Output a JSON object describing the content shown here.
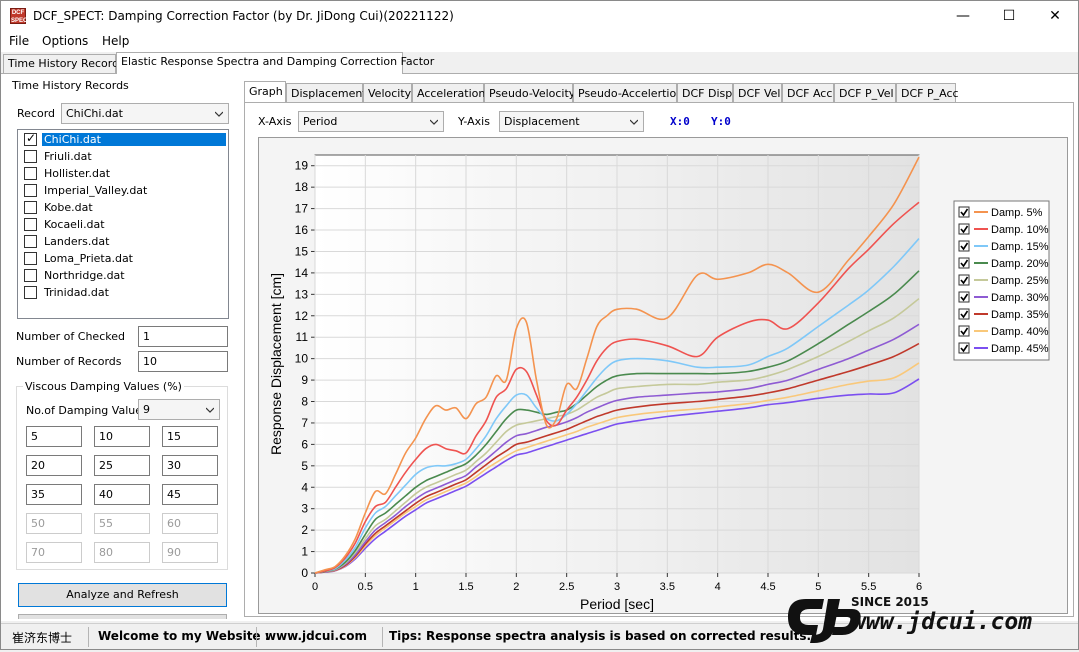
{
  "window": {
    "title": "DCF_SPECT: Damping Correction Factor (by Dr. JiDong Cui)(20221122)",
    "icon_text": "DCF SPECT",
    "minimize": "—",
    "maximize": "☐",
    "close": "✕"
  },
  "menu": [
    "File",
    "Options",
    "Help"
  ],
  "top_tabs": [
    "Time History Records",
    "Elastic Response Spectra and Damping Correction Factor"
  ],
  "left": {
    "group_title": "Time History Records",
    "record_label": "Record",
    "record_value": "ChiChi.dat",
    "records": [
      {
        "name": "ChiChi.dat",
        "checked": true,
        "selected": true
      },
      {
        "name": "Friuli.dat",
        "checked": false,
        "selected": false
      },
      {
        "name": "Hollister.dat",
        "checked": false,
        "selected": false
      },
      {
        "name": "Imperial_Valley.dat",
        "checked": false,
        "selected": false
      },
      {
        "name": "Kobe.dat",
        "checked": false,
        "selected": false
      },
      {
        "name": "Kocaeli.dat",
        "checked": false,
        "selected": false
      },
      {
        "name": "Landers.dat",
        "checked": false,
        "selected": false
      },
      {
        "name": "Loma_Prieta.dat",
        "checked": false,
        "selected": false
      },
      {
        "name": "Northridge.dat",
        "checked": false,
        "selected": false
      },
      {
        "name": "Trinidad.dat",
        "checked": false,
        "selected": false
      }
    ],
    "num_checked_label": "Number of Checked",
    "num_checked_value": "1",
    "num_records_label": "Number of Records",
    "num_records_value": "10",
    "damping_group_title": "Viscous Damping Values (%)",
    "num_damping_label": "No.of Damping Values",
    "num_damping_value": "9",
    "damping_values": [
      "5",
      "10",
      "15",
      "20",
      "25",
      "30",
      "35",
      "40",
      "45",
      "50",
      "55",
      "60",
      "70",
      "80",
      "90"
    ],
    "damping_enabled_count": 9,
    "analyze_button": "Analyze and Refresh"
  },
  "right": {
    "tabs": [
      "Graph",
      "Displacement",
      "Velocity",
      "Acceleration",
      "Pseudo-Velocity",
      "Pseudo-Accelertion",
      "DCF Disp",
      "DCF Vel",
      "DCF Acc",
      "DCF P_Vel",
      "DCF P_Acc"
    ],
    "active_tab": "Graph",
    "xaxis_label": "X-Axis",
    "xaxis_value": "Period",
    "yaxis_label": "Y-Axis",
    "yaxis_value": "Displacement",
    "x_readout": "X:0",
    "y_readout": "Y:0"
  },
  "status": {
    "author": "崔济东博士",
    "welcome": "Welcome to my Website :",
    "website": "www.jdcui.com",
    "tips": "Tips: Response spectra analysis is based on corrected results."
  },
  "watermark": {
    "since": "SINCE 2015",
    "url": "www.jdcui.com"
  },
  "chart_data": {
    "type": "line",
    "xlabel": "Period [sec]",
    "ylabel": "Response Displacement [cm]",
    "xlim": [
      0,
      6
    ],
    "ylim": [
      0,
      19.5
    ],
    "xticks": [
      "0",
      "0.5",
      "1",
      "1.5",
      "2",
      "2.5",
      "3",
      "3.5",
      "4",
      "4.5",
      "5",
      "5.5",
      "6"
    ],
    "yticks": [
      "0",
      "1",
      "2",
      "3",
      "4",
      "5",
      "6",
      "7",
      "8",
      "9",
      "10",
      "11",
      "12",
      "13",
      "14",
      "15",
      "16",
      "17",
      "18",
      "19"
    ],
    "grid": true,
    "legend_position": "right",
    "x": [
      0,
      0.1,
      0.2,
      0.3,
      0.4,
      0.5,
      0.6,
      0.7,
      0.8,
      0.9,
      1.0,
      1.1,
      1.2,
      1.3,
      1.4,
      1.5,
      1.6,
      1.7,
      1.8,
      1.9,
      2.0,
      2.1,
      2.2,
      2.3,
      2.4,
      2.5,
      2.6,
      2.7,
      2.8,
      2.9,
      3.0,
      3.2,
      3.5,
      3.8,
      4.0,
      4.3,
      4.5,
      4.7,
      5.0,
      5.3,
      5.5,
      5.75,
      6.0
    ],
    "series": [
      {
        "name": "Damp. 5%",
        "color": "#f4934f",
        "values": [
          0,
          0.15,
          0.3,
          0.8,
          1.6,
          2.8,
          3.8,
          3.7,
          4.6,
          5.6,
          6.3,
          7.2,
          7.8,
          7.6,
          7.7,
          7.2,
          7.9,
          8.2,
          9.2,
          9.0,
          11.4,
          11.7,
          9.0,
          6.9,
          7.2,
          8.8,
          8.6,
          10.0,
          11.5,
          12.0,
          12.3,
          12.3,
          11.9,
          13.9,
          13.7,
          14.0,
          14.4,
          14.0,
          13.1,
          14.6,
          15.7,
          17.2,
          19.4
        ]
      },
      {
        "name": "Damp. 10%",
        "color": "#ef5350",
        "values": [
          0,
          0.1,
          0.25,
          0.7,
          1.4,
          2.4,
          3.1,
          3.3,
          4.0,
          4.7,
          5.3,
          5.8,
          6.0,
          5.8,
          5.7,
          5.6,
          6.4,
          7.1,
          8.2,
          8.6,
          9.5,
          9.4,
          8.3,
          7.1,
          6.9,
          7.6,
          8.2,
          9.0,
          9.9,
          10.5,
          10.8,
          10.9,
          10.6,
          10.1,
          11.0,
          11.7,
          11.8,
          11.4,
          12.6,
          14.2,
          15.1,
          16.3,
          17.3
        ]
      },
      {
        "name": "Damp. 15%",
        "color": "#7fc8f8",
        "values": [
          0,
          0.1,
          0.2,
          0.6,
          1.2,
          2.1,
          2.8,
          3.1,
          3.6,
          4.1,
          4.6,
          4.9,
          5.0,
          5.0,
          5.1,
          5.3,
          5.8,
          6.4,
          7.2,
          7.8,
          8.3,
          8.3,
          7.7,
          7.2,
          7.1,
          7.4,
          7.9,
          8.5,
          9.1,
          9.6,
          9.9,
          10.0,
          9.9,
          9.6,
          9.6,
          9.7,
          10.1,
          10.5,
          11.5,
          12.5,
          13.2,
          14.3,
          15.6
        ]
      },
      {
        "name": "Damp. 20%",
        "color": "#4a8a4e",
        "values": [
          0,
          0.08,
          0.18,
          0.5,
          1.05,
          1.8,
          2.5,
          2.8,
          3.2,
          3.6,
          4.0,
          4.3,
          4.5,
          4.7,
          4.9,
          5.1,
          5.5,
          6.0,
          6.6,
          7.2,
          7.6,
          7.6,
          7.5,
          7.4,
          7.5,
          7.6,
          7.9,
          8.3,
          8.7,
          9.0,
          9.2,
          9.3,
          9.3,
          9.3,
          9.3,
          9.4,
          9.6,
          9.9,
          10.7,
          11.6,
          12.2,
          13.0,
          14.1
        ]
      },
      {
        "name": "Damp. 25%",
        "color": "#c5c99a",
        "values": [
          0,
          0.07,
          0.16,
          0.45,
          0.95,
          1.6,
          2.2,
          2.5,
          2.9,
          3.3,
          3.7,
          4.0,
          4.2,
          4.4,
          4.6,
          4.8,
          5.2,
          5.6,
          6.1,
          6.6,
          6.9,
          7.0,
          7.1,
          7.2,
          7.3,
          7.4,
          7.6,
          7.9,
          8.2,
          8.4,
          8.6,
          8.7,
          8.8,
          8.8,
          8.9,
          9.0,
          9.2,
          9.5,
          10.1,
          10.8,
          11.3,
          11.9,
          12.8
        ]
      },
      {
        "name": "Damp. 30%",
        "color": "#8e5bd3",
        "values": [
          0,
          0.06,
          0.14,
          0.4,
          0.85,
          1.45,
          2.0,
          2.35,
          2.7,
          3.1,
          3.45,
          3.75,
          3.95,
          4.15,
          4.35,
          4.55,
          4.95,
          5.3,
          5.7,
          6.1,
          6.4,
          6.5,
          6.65,
          6.8,
          6.9,
          7.05,
          7.25,
          7.5,
          7.7,
          7.9,
          8.05,
          8.2,
          8.3,
          8.4,
          8.45,
          8.6,
          8.8,
          9.0,
          9.5,
          10.0,
          10.4,
          10.9,
          11.6
        ]
      },
      {
        "name": "Damp. 35%",
        "color": "#c0392b",
        "values": [
          0,
          0.05,
          0.12,
          0.35,
          0.78,
          1.35,
          1.85,
          2.2,
          2.55,
          2.9,
          3.25,
          3.55,
          3.75,
          3.95,
          4.15,
          4.35,
          4.7,
          5.05,
          5.4,
          5.7,
          6.0,
          6.1,
          6.25,
          6.4,
          6.55,
          6.7,
          6.9,
          7.1,
          7.3,
          7.45,
          7.6,
          7.75,
          7.9,
          8.0,
          8.1,
          8.25,
          8.4,
          8.6,
          9.0,
          9.4,
          9.7,
          10.1,
          10.7
        ]
      },
      {
        "name": "Damp. 40%",
        "color": "#f9c87a",
        "values": [
          0,
          0.05,
          0.11,
          0.32,
          0.72,
          1.25,
          1.75,
          2.1,
          2.45,
          2.8,
          3.1,
          3.4,
          3.6,
          3.8,
          4.0,
          4.2,
          4.5,
          4.85,
          5.15,
          5.45,
          5.7,
          5.85,
          6.0,
          6.15,
          6.3,
          6.45,
          6.6,
          6.8,
          6.95,
          7.1,
          7.25,
          7.4,
          7.55,
          7.65,
          7.75,
          7.9,
          8.05,
          8.2,
          8.5,
          8.8,
          8.95,
          9.1,
          9.8
        ]
      },
      {
        "name": "Damp. 45%",
        "color": "#7b4ff0",
        "values": [
          0,
          0.04,
          0.1,
          0.3,
          0.66,
          1.15,
          1.6,
          1.95,
          2.3,
          2.65,
          2.95,
          3.25,
          3.45,
          3.65,
          3.85,
          4.05,
          4.35,
          4.65,
          4.95,
          5.25,
          5.5,
          5.6,
          5.75,
          5.9,
          6.05,
          6.2,
          6.35,
          6.5,
          6.65,
          6.8,
          6.95,
          7.1,
          7.3,
          7.45,
          7.55,
          7.7,
          7.85,
          7.95,
          8.15,
          8.3,
          8.35,
          8.4,
          9.05
        ]
      }
    ]
  }
}
